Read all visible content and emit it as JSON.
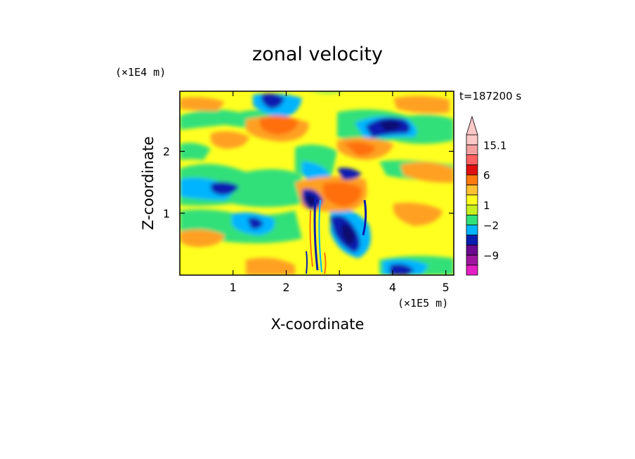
{
  "chart_data": {
    "type": "heatmap",
    "title": "zonal velocity",
    "xlabel": "X-coordinate",
    "ylabel": "Z-coordinate",
    "x_unit": "(×1E5 m)",
    "y_unit": "(×1E4 m)",
    "time_label": "t=187200 s",
    "xlim": [
      0,
      5.15
    ],
    "ylim": [
      0,
      2.97
    ],
    "x_ticks": [
      1,
      2,
      3,
      4,
      5
    ],
    "y_ticks": [
      1,
      2
    ],
    "grid": false,
    "colorbar": {
      "position": "right",
      "extend_max": true,
      "levels": [
        {
          "color": "#e41fc3"
        },
        {
          "color": "#a0179f"
        },
        {
          "color": "#6a0a8f"
        },
        {
          "color": "#0a1fb0"
        },
        {
          "color": "#00b4ff"
        },
        {
          "color": "#32e07a"
        },
        {
          "color": "#c8f020"
        },
        {
          "color": "#ffff20"
        },
        {
          "color": "#ffc032"
        },
        {
          "color": "#ff7a10"
        },
        {
          "color": "#e01010"
        },
        {
          "color": "#ff6060"
        },
        {
          "color": "#f4a0a0"
        },
        {
          "color": "#ffc8c8"
        }
      ],
      "tick_labels": [
        "15.1",
        "6",
        "1",
        "−2",
        "−9"
      ]
    },
    "palette": {
      "yellow": "#ffff20",
      "green": "#32e07a",
      "cyan": "#00b4ff",
      "blue": "#0a1fb0",
      "navy": "#0a0a70",
      "orange": "#ffa020",
      "red_orange": "#ff7010",
      "magenta": "#c01890"
    }
  }
}
